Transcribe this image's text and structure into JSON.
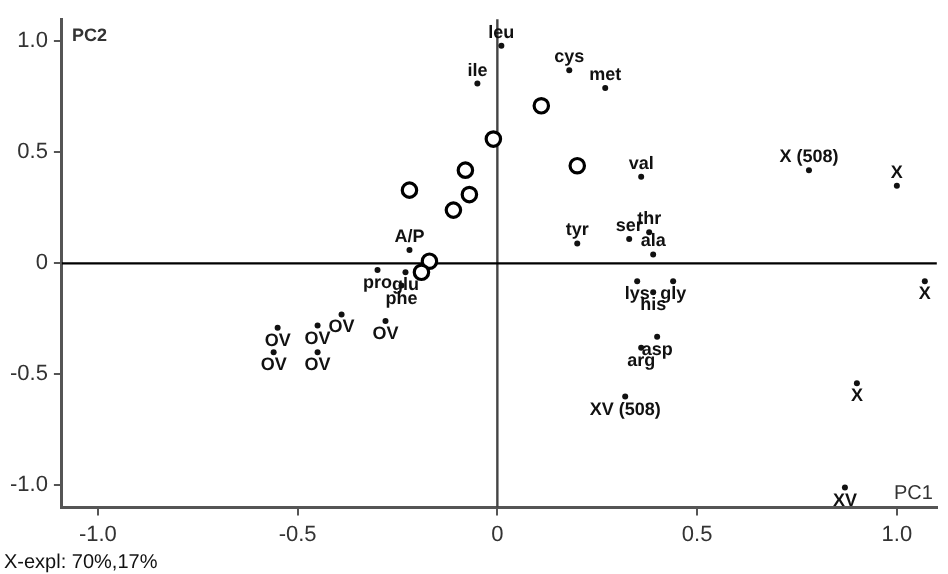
{
  "chart_data": {
    "type": "scatter",
    "xlabel": "PC1",
    "ylabel": "PC2",
    "xlim": [
      -1.09,
      1.1
    ],
    "ylim": [
      -1.1,
      1.1
    ],
    "xticks": [
      {
        "value": -1,
        "label": "-1.0"
      },
      {
        "value": -0.5,
        "label": "-0.5"
      },
      0,
      0.5,
      {
        "value": 1,
        "label": "1.0"
      }
    ],
    "yticks": [
      {
        "value": -1,
        "label": "-1.0"
      },
      {
        "value": -0.5,
        "label": "-0.5"
      },
      0,
      0.5,
      {
        "value": 1,
        "label": "1.0"
      }
    ],
    "grid": false,
    "legend": false,
    "marker": "circle",
    "series": [
      {
        "color": "#000000",
        "x": [
          -0.22,
          -0.08,
          -0.07,
          -0.11,
          -0.17,
          -0.19,
          0.11,
          -0.01,
          0.2
        ],
        "values": [
          0.33,
          0.42,
          0.31,
          0.24,
          0.01,
          -0.04,
          0.71,
          0.56,
          0.44
        ]
      },
      {
        "color": "#111111",
        "x": [
          0.01,
          -0.05,
          0.18,
          0.27,
          0.36,
          0.2,
          0.33,
          0.38,
          0.39,
          0.35,
          0.44,
          0.39,
          0.4,
          0.36,
          -0.22,
          -0.3,
          -0.23,
          -0.24
        ],
        "values": [
          0.98,
          0.81,
          0.87,
          0.79,
          0.39,
          0.09,
          0.11,
          0.14,
          0.04,
          -0.08,
          -0.08,
          -0.13,
          -0.33,
          -0.38,
          0.06,
          -0.03,
          -0.04,
          -0.1
        ]
      },
      {
        "color": "#111111",
        "x": [
          0.78,
          1.0,
          1.07,
          0.9,
          0.32,
          0.87,
          -0.55,
          -0.56,
          -0.45,
          -0.45,
          -0.39,
          -0.28
        ],
        "values": [
          0.42,
          0.35,
          -0.08,
          -0.54,
          -0.6,
          -1.01,
          -0.29,
          -0.4,
          -0.28,
          -0.4,
          -0.23,
          -0.26
        ]
      }
    ],
    "ref_lines": [
      {
        "axis": "x",
        "value": 0,
        "color": "#444444"
      },
      {
        "axis": "y",
        "value": 0,
        "color": "#000000"
      }
    ],
    "annotations": [
      {
        "text": "leu",
        "x": 0.01,
        "y": 0.98
      },
      {
        "text": "ile",
        "x": -0.05,
        "y": 0.81
      },
      {
        "text": "cys",
        "x": 0.18,
        "y": 0.87
      },
      {
        "text": "met",
        "x": 0.27,
        "y": 0.79
      },
      {
        "text": "val",
        "x": 0.36,
        "y": 0.39
      },
      {
        "text": "tyr",
        "x": 0.2,
        "y": 0.09
      },
      {
        "text": "ser",
        "x": 0.33,
        "y": 0.11
      },
      {
        "text": "thr",
        "x": 0.38,
        "y": 0.14
      },
      {
        "text": "ala",
        "x": 0.39,
        "y": 0.04
      },
      {
        "text": "lys",
        "x": 0.35,
        "y": -0.08
      },
      {
        "text": "gly",
        "x": 0.44,
        "y": -0.08
      },
      {
        "text": "his",
        "x": 0.39,
        "y": -0.13
      },
      {
        "text": "asp",
        "x": 0.4,
        "y": -0.33
      },
      {
        "text": "arg",
        "x": 0.36,
        "y": -0.38
      },
      {
        "text": "A/P",
        "x": -0.22,
        "y": 0.06
      },
      {
        "text": "pro",
        "x": -0.3,
        "y": -0.03
      },
      {
        "text": "glu",
        "x": -0.23,
        "y": -0.04
      },
      {
        "text": "phe",
        "x": -0.24,
        "y": -0.1
      },
      {
        "text": "X (508)",
        "x": 0.78,
        "y": 0.42
      },
      {
        "text": "X",
        "x": 1.0,
        "y": 0.35
      },
      {
        "text": "X",
        "x": 1.07,
        "y": -0.08
      },
      {
        "text": "X",
        "x": 0.9,
        "y": -0.54
      },
      {
        "text": "XV (508)",
        "x": 0.32,
        "y": -0.6
      },
      {
        "text": "XV",
        "x": 0.87,
        "y": -1.01
      },
      {
        "text": "OV",
        "x": -0.55,
        "y": -0.29
      },
      {
        "text": "OV",
        "x": -0.56,
        "y": -0.4
      },
      {
        "text": "OV",
        "x": -0.45,
        "y": -0.28
      },
      {
        "text": "OV",
        "x": -0.45,
        "y": -0.4
      },
      {
        "text": "OV",
        "x": -0.39,
        "y": -0.23
      },
      {
        "text": "OV",
        "x": -0.28,
        "y": -0.26
      },
      "X-expl: 70%,17%"
    ]
  }
}
